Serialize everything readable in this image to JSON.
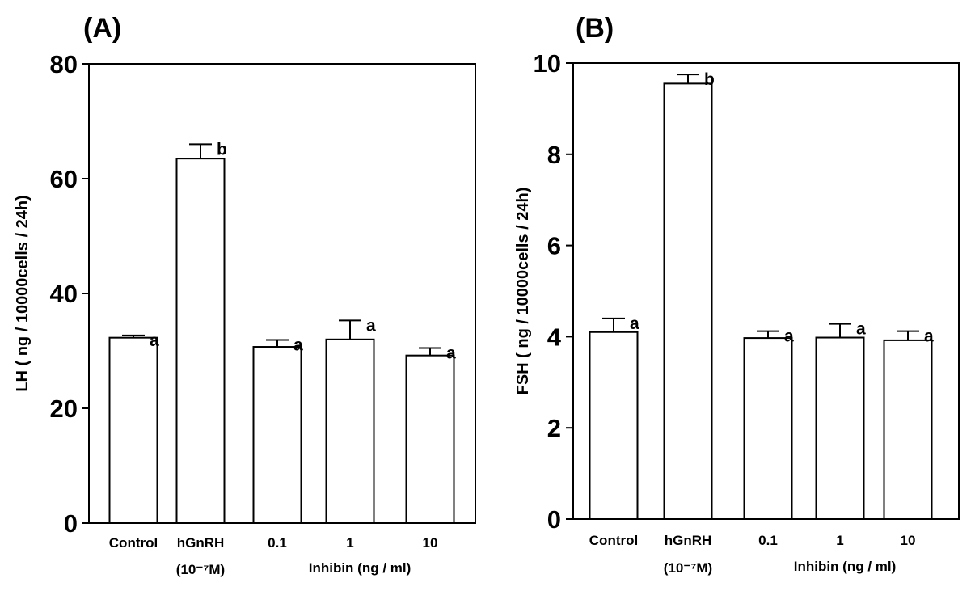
{
  "chart_data": [
    {
      "type": "bar",
      "panel_label": "(A)",
      "ylabel": "LH ( ng / 10000cells / 24h)",
      "ylim": [
        0,
        80
      ],
      "yticks": [
        0,
        20,
        40,
        60,
        80
      ],
      "categories": [
        "Control",
        "hGnRH",
        "0.1",
        "1",
        "10"
      ],
      "category_sublabels": [
        "",
        "(10⁻⁷M)",
        "",
        "",
        ""
      ],
      "group_label": "Inhibin (ng / ml)",
      "values": [
        32.3,
        63.5,
        30.7,
        32.0,
        29.2
      ],
      "errors": [
        0.4,
        2.5,
        1.2,
        3.3,
        1.3
      ],
      "significance": [
        "a",
        "b",
        "a",
        "a",
        "a"
      ],
      "grid": false
    },
    {
      "type": "bar",
      "panel_label": "(B)",
      "ylabel": "FSH ( ng / 10000cells / 24h)",
      "ylim": [
        0,
        10
      ],
      "yticks": [
        0,
        2,
        4,
        6,
        8,
        10
      ],
      "categories": [
        "Control",
        "hGnRH",
        "0.1",
        "1",
        "10"
      ],
      "category_sublabels": [
        "",
        "(10⁻⁷M)",
        "",
        "",
        ""
      ],
      "group_label": "Inhibin (ng / ml)",
      "values": [
        4.1,
        9.55,
        3.97,
        3.98,
        3.92
      ],
      "errors": [
        0.3,
        0.2,
        0.15,
        0.3,
        0.2
      ],
      "significance": [
        "a",
        "b",
        "a",
        "a",
        "a"
      ],
      "grid": false
    }
  ]
}
